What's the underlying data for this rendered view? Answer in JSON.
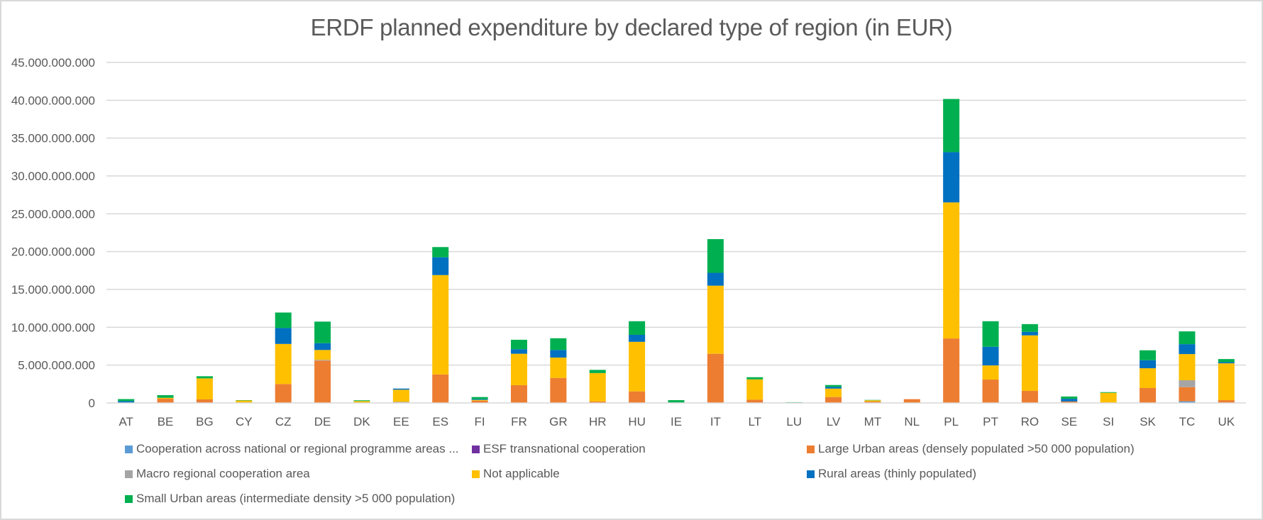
{
  "chart_data": {
    "type": "bar",
    "stacked": true,
    "title": "ERDF planned expenditure by declared type of region (in EUR)",
    "xlabel": "",
    "ylabel": "",
    "ylim": [
      0,
      45000000000
    ],
    "yticks": [
      0,
      5000000000,
      10000000000,
      15000000000,
      20000000000,
      25000000000,
      30000000000,
      35000000000,
      40000000000,
      45000000000
    ],
    "ytick_labels": [
      "0",
      "5.000.000.000",
      "10.000.000.000",
      "15.000.000.000",
      "20.000.000.000",
      "25.000.000.000",
      "30.000.000.000",
      "35.000.000.000",
      "40.000.000.000",
      "45.000.000.000"
    ],
    "grid": true,
    "legend_position": "bottom",
    "categories": [
      "AT",
      "BE",
      "BG",
      "CY",
      "CZ",
      "DE",
      "DK",
      "EE",
      "ES",
      "FI",
      "FR",
      "GR",
      "HR",
      "HU",
      "IE",
      "IT",
      "LT",
      "LU",
      "LV",
      "MT",
      "NL",
      "PL",
      "PT",
      "RO",
      "SE",
      "SI",
      "SK",
      "TC",
      "UK"
    ],
    "series": [
      {
        "name": "Cooperation across national or regional programme areas ...",
        "color": "#5b9bd5",
        "values": [
          0,
          0,
          0,
          0,
          0,
          0,
          0,
          0,
          0,
          0,
          0,
          0,
          0,
          0,
          0,
          0,
          0,
          0,
          0,
          0,
          0,
          0,
          0,
          0,
          0,
          0,
          0,
          220000000,
          0
        ]
      },
      {
        "name": "ESF transnational cooperation",
        "color": "#7030a0",
        "values": [
          0,
          0,
          0,
          0,
          0,
          0,
          0,
          0,
          0,
          0,
          0,
          0,
          0,
          0,
          0,
          0,
          0,
          0,
          0,
          0,
          0,
          0,
          0,
          0,
          0,
          0,
          0,
          0,
          0
        ]
      },
      {
        "name": "Large Urban areas (densely populated >50 000 population)",
        "color": "#ed7d31",
        "values": [
          30000000,
          560000000,
          470000000,
          30000000,
          2500000000,
          5600000000,
          0,
          50000000,
          3770000000,
          300000000,
          2350000000,
          3300000000,
          200000000,
          1530000000,
          0,
          6500000000,
          430000000,
          0,
          780000000,
          200000000,
          500000000,
          8520000000,
          3090000000,
          1590000000,
          200000000,
          0,
          1970000000,
          1870000000,
          370000000
        ]
      },
      {
        "name": "Macro regional cooperation area",
        "color": "#a5a5a5",
        "values": [
          0,
          0,
          0,
          0,
          0,
          100000000,
          0,
          100000000,
          0,
          0,
          0,
          0,
          0,
          0,
          0,
          0,
          0,
          0,
          0,
          0,
          0,
          0,
          0,
          0,
          0,
          0,
          0,
          910000000,
          0
        ]
      },
      {
        "name": "Not applicable",
        "color": "#ffc000",
        "values": [
          0,
          120000000,
          2780000000,
          300000000,
          5300000000,
          1300000000,
          250000000,
          1600000000,
          13130000000,
          100000000,
          4150000000,
          2700000000,
          3750000000,
          6550000000,
          0,
          9000000000,
          2690000000,
          0,
          1120000000,
          150000000,
          0,
          17980000000,
          1870000000,
          7340000000,
          0,
          1340000000,
          2620000000,
          3460000000,
          4870000000
        ]
      },
      {
        "name": "Rural areas (thinly populated)",
        "color": "#0070c0",
        "values": [
          220000000,
          0,
          0,
          0,
          2100000000,
          900000000,
          0,
          150000000,
          2350000000,
          100000000,
          600000000,
          1000000000,
          0,
          920000000,
          70000000,
          1700000000,
          0,
          0,
          220000000,
          0,
          0,
          6650000000,
          2470000000,
          470000000,
          350000000,
          0,
          1060000000,
          1310000000,
          160000000
        ]
      },
      {
        "name": "Small Urban areas (intermediate density >5 000 population)",
        "color": "#00b050",
        "values": [
          260000000,
          350000000,
          280000000,
          40000000,
          2050000000,
          2850000000,
          100000000,
          0,
          1350000000,
          280000000,
          1250000000,
          1550000000,
          420000000,
          1800000000,
          300000000,
          4450000000,
          280000000,
          100000000,
          250000000,
          50000000,
          0,
          7020000000,
          3370000000,
          1020000000,
          300000000,
          90000000,
          1310000000,
          1690000000,
          400000000
        ]
      }
    ]
  }
}
